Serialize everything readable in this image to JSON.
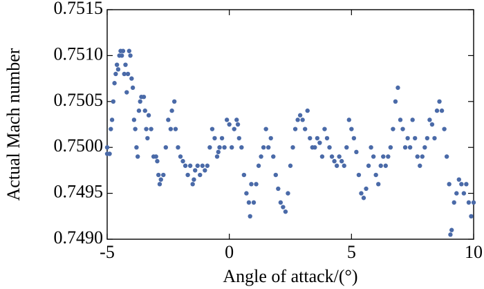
{
  "chart_data": {
    "type": "scatter",
    "xlabel": "Angle of attack/(°)",
    "ylabel": "Actual Mach number",
    "color": "#4a6aa8",
    "xlim": [
      -5,
      10
    ],
    "xticks": [
      -5,
      0,
      5,
      10
    ],
    "ylim": [
      0.749,
      0.7515
    ],
    "yticks": [
      {
        "value": 0.749,
        "label": "0.7490"
      },
      0.7495,
      {
        "value": 0.75,
        "label": "0.7500"
      },
      0.7505,
      {
        "value": 0.751,
        "label": "0.7510"
      },
      0.7515
    ],
    "x": [
      -5.0,
      -5.0,
      -4.9,
      -4.85,
      -4.8,
      -4.75,
      -4.7,
      -4.65,
      -4.6,
      -4.55,
      -4.5,
      -4.45,
      -4.4,
      -4.35,
      -4.3,
      -4.25,
      -4.2,
      -4.15,
      -4.1,
      -4.05,
      -4.0,
      -3.95,
      -3.9,
      -3.85,
      -3.8,
      -3.75,
      -3.7,
      -3.65,
      -3.6,
      -3.5,
      -3.45,
      -3.4,
      -3.35,
      -3.3,
      -3.2,
      -3.1,
      -3.0,
      -2.95,
      -2.9,
      -2.85,
      -2.8,
      -2.7,
      -2.6,
      -2.5,
      -2.4,
      -2.35,
      -2.25,
      -2.2,
      -2.1,
      -2.0,
      -1.9,
      -1.8,
      -1.7,
      -1.6,
      -1.5,
      -1.45,
      -1.4,
      -1.3,
      -1.2,
      -1.1,
      -1.0,
      -0.9,
      -0.8,
      -0.7,
      -0.6,
      -0.5,
      -0.45,
      -0.4,
      -0.3,
      -0.2,
      -0.1,
      0.0,
      0.1,
      0.2,
      0.3,
      0.35,
      0.4,
      0.5,
      0.6,
      0.7,
      0.8,
      0.85,
      0.9,
      1.0,
      1.1,
      1.2,
      1.3,
      1.4,
      1.5,
      1.6,
      1.7,
      1.8,
      1.9,
      2.0,
      2.1,
      2.2,
      2.3,
      2.4,
      2.5,
      2.6,
      2.7,
      2.8,
      2.9,
      3.0,
      3.1,
      3.2,
      3.3,
      3.4,
      3.5,
      3.6,
      3.7,
      3.8,
      3.9,
      4.0,
      4.1,
      4.2,
      4.3,
      4.4,
      4.5,
      4.6,
      4.7,
      4.8,
      4.9,
      5.0,
      5.1,
      5.2,
      5.3,
      5.4,
      5.5,
      5.6,
      5.7,
      5.8,
      5.9,
      6.0,
      6.1,
      6.2,
      6.3,
      6.4,
      6.5,
      6.6,
      6.7,
      6.8,
      6.9,
      7.0,
      7.1,
      7.2,
      7.3,
      7.4,
      7.5,
      7.6,
      7.7,
      7.8,
      7.9,
      8.0,
      8.1,
      8.2,
      8.3,
      8.4,
      8.5,
      8.6,
      8.7,
      8.8,
      8.9,
      9.0,
      9.05,
      9.1,
      9.2,
      9.3,
      9.4,
      9.5,
      9.6,
      9.7,
      9.8,
      9.9,
      10.0
    ],
    "values": [
      0.75,
      0.74993,
      0.74993,
      0.7502,
      0.7503,
      0.7505,
      0.7507,
      0.7508,
      0.7509,
      0.75085,
      0.751,
      0.75105,
      0.751,
      0.75105,
      0.7508,
      0.7509,
      0.7506,
      0.7508,
      0.75105,
      0.751,
      0.75075,
      0.75065,
      0.7503,
      0.7502,
      0.75,
      0.7499,
      0.7504,
      0.7505,
      0.75055,
      0.75055,
      0.7504,
      0.7502,
      0.7501,
      0.75035,
      0.7502,
      0.7499,
      0.7499,
      0.74985,
      0.7497,
      0.7496,
      0.74965,
      0.7497,
      0.75,
      0.7503,
      0.7502,
      0.7504,
      0.7505,
      0.7502,
      0.75,
      0.7499,
      0.74985,
      0.7498,
      0.7497,
      0.7498,
      0.7496,
      0.74965,
      0.74975,
      0.7498,
      0.7497,
      0.7498,
      0.74975,
      0.7498,
      0.75,
      0.7502,
      0.7501,
      0.7499,
      0.74995,
      0.75,
      0.7501,
      0.75,
      0.7503,
      0.75025,
      0.75,
      0.7502,
      0.7503,
      0.75025,
      0.7501,
      0.75,
      0.7497,
      0.7495,
      0.7494,
      0.74925,
      0.7496,
      0.7494,
      0.7496,
      0.7498,
      0.7499,
      0.75,
      0.7502,
      0.75,
      0.7501,
      0.7499,
      0.7497,
      0.74955,
      0.7494,
      0.74935,
      0.7493,
      0.7495,
      0.7498,
      0.75,
      0.7502,
      0.7503,
      0.75035,
      0.7503,
      0.7502,
      0.7504,
      0.7501,
      0.75,
      0.75,
      0.7501,
      0.75005,
      0.7499,
      0.7502,
      0.7501,
      0.75,
      0.7499,
      0.74985,
      0.7498,
      0.7499,
      0.74985,
      0.7498,
      0.75,
      0.7503,
      0.7502,
      0.7501,
      0.74995,
      0.7497,
      0.7495,
      0.74945,
      0.74955,
      0.7498,
      0.75,
      0.7499,
      0.7497,
      0.7496,
      0.7498,
      0.7499,
      0.7498,
      0.7499,
      0.75,
      0.7502,
      0.7505,
      0.75065,
      0.7503,
      0.7502,
      0.75,
      0.7501,
      0.75,
      0.7503,
      0.7501,
      0.7499,
      0.7498,
      0.7499,
      0.75,
      0.7501,
      0.7503,
      0.75025,
      0.7501,
      0.7504,
      0.7505,
      0.7504,
      0.7502,
      0.7499,
      0.7496,
      0.74905,
      0.7491,
      0.7494,
      0.7495,
      0.74965,
      0.7496,
      0.7495,
      0.7496,
      0.7494,
      0.74925,
      0.7494
    ]
  }
}
